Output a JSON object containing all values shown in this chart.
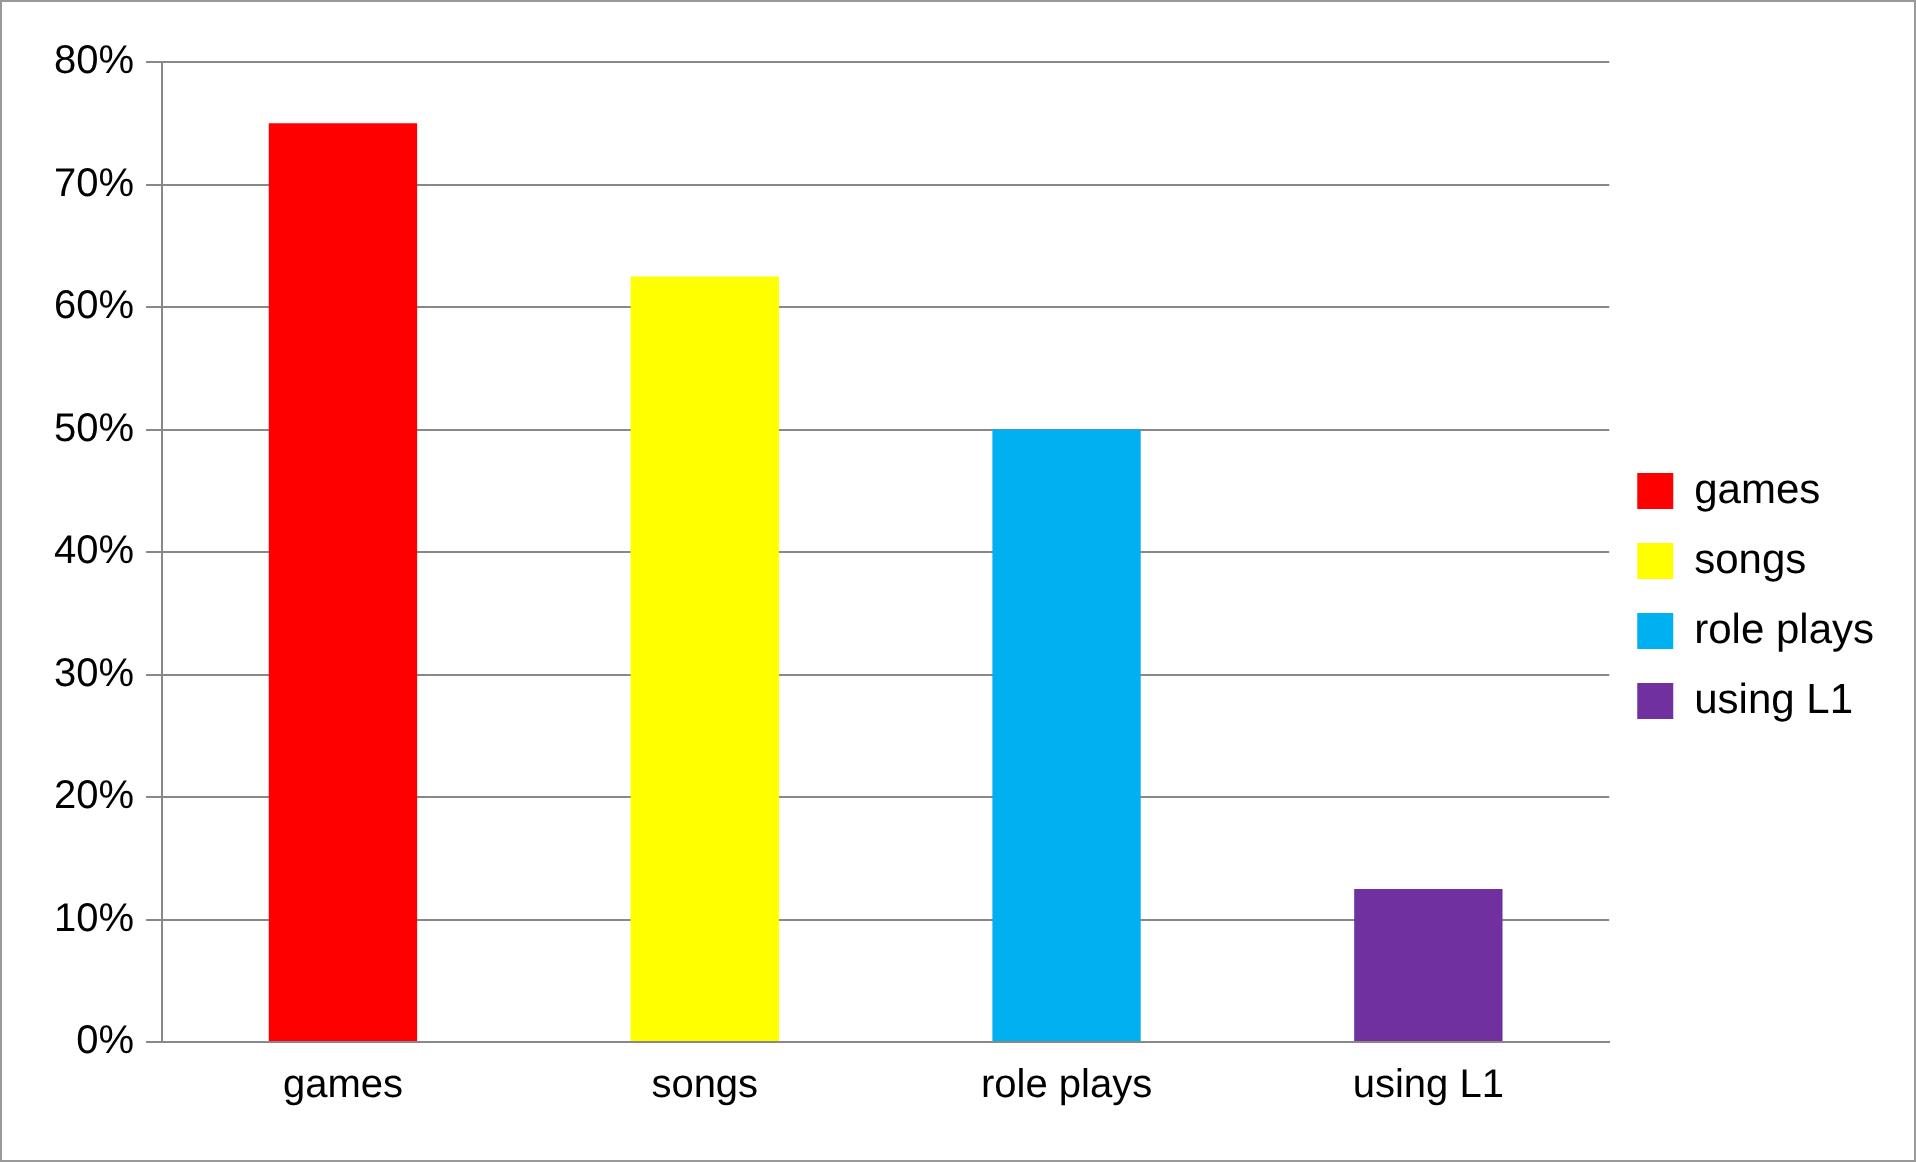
{
  "chart_data": {
    "type": "bar",
    "categories": [
      "games",
      "songs",
      "role plays",
      "using L1"
    ],
    "series": [
      {
        "name": "games",
        "color": "#ff0000",
        "values": [
          75,
          null,
          null,
          null
        ]
      },
      {
        "name": "songs",
        "color": "#ffff00",
        "values": [
          null,
          62.5,
          null,
          null
        ]
      },
      {
        "name": "role plays",
        "color": "#00b0f0",
        "values": [
          null,
          null,
          50,
          null
        ]
      },
      {
        "name": "using L1",
        "color": "#7030a0",
        "values": [
          null,
          null,
          null,
          12.5
        ]
      }
    ],
    "ylim": [
      0,
      80
    ],
    "yticks": [
      {
        "value": 0,
        "label": "0%"
      },
      {
        "value": 10,
        "label": "10%"
      },
      {
        "value": 20,
        "label": "20%"
      },
      {
        "value": 30,
        "label": "30%"
      },
      {
        "value": 40,
        "label": "40%"
      },
      {
        "value": 50,
        "label": "50%"
      },
      {
        "value": 60,
        "label": "60%"
      },
      {
        "value": 70,
        "label": "70%"
      },
      {
        "value": 80,
        "label": "80%"
      }
    ],
    "grid": "y",
    "legend": "right"
  }
}
